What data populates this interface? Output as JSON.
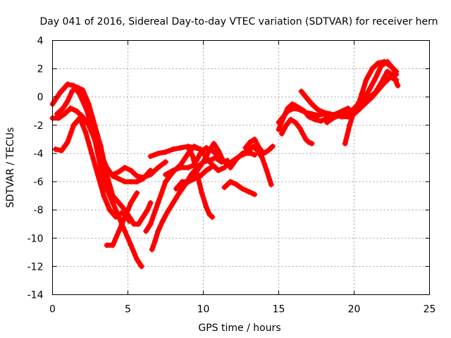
{
  "chart_data": {
    "type": "scatter",
    "title": "Day 041 of 2016, Sidereal Day-to-day VTEC variation (SDTVAR) for receiver hern",
    "xlabel": "GPS time / hours",
    "ylabel": "SDTVAR / TECUs",
    "xlim": [
      0,
      25
    ],
    "ylim": [
      -14,
      4
    ],
    "xticks": [
      0,
      5,
      10,
      15,
      20,
      25
    ],
    "yticks": [
      -14,
      -12,
      -10,
      -8,
      -6,
      -4,
      -2,
      0,
      2,
      4
    ],
    "grid": true,
    "marker": "+",
    "color": "#ff0000",
    "series": [
      {
        "name": "track-1",
        "x": [
          0.0,
          0.5,
          1.0,
          1.4,
          1.8,
          2.3,
          2.8,
          3.2,
          3.6,
          4.0,
          4.4,
          4.8,
          5.2,
          5.6,
          5.9
        ],
        "y": [
          -0.5,
          0.3,
          0.9,
          0.8,
          0.2,
          -1.0,
          -3.0,
          -5.0,
          -6.5,
          -7.5,
          -8.5,
          -9.5,
          -10.5,
          -11.5,
          -12.0
        ]
      },
      {
        "name": "track-2",
        "x": [
          0.0,
          0.4,
          0.8,
          1.2,
          1.6,
          2.0,
          2.4,
          2.8,
          3.2,
          3.6,
          4.0,
          4.4,
          4.8,
          5.2,
          5.6,
          6.0,
          6.5
        ],
        "y": [
          -1.5,
          -1.5,
          -1.2,
          -0.8,
          -1.0,
          -1.4,
          -2.0,
          -3.0,
          -4.0,
          -5.0,
          -5.6,
          -5.8,
          -6.0,
          -6.0,
          -6.0,
          -5.8,
          -5.2
        ]
      },
      {
        "name": "track-3",
        "x": [
          0.3,
          0.7,
          1.0,
          1.3,
          1.6,
          2.0,
          2.4,
          2.8,
          3.2,
          3.6,
          4.0,
          4.4,
          4.8,
          5.1,
          5.4,
          5.7,
          6.0,
          6.3,
          6.5
        ],
        "y": [
          -1.2,
          -0.8,
          -0.3,
          0.4,
          0.7,
          0.5,
          -0.5,
          -2.0,
          -3.5,
          -5.5,
          -7.0,
          -7.5,
          -8.0,
          -8.5,
          -9.0,
          -9.0,
          -8.5,
          -8.0,
          -7.5
        ]
      },
      {
        "name": "track-4",
        "x": [
          0.2,
          0.6,
          1.0,
          1.4,
          1.8,
          2.2,
          2.6,
          3.0,
          3.4,
          3.8,
          4.2,
          4.6,
          4.9,
          5.1
        ],
        "y": [
          -3.7,
          -3.8,
          -3.2,
          -2.0,
          -1.5,
          -2.5,
          -4.0,
          -5.5,
          -7.0,
          -8.0,
          -8.5,
          -8.2,
          -8.4,
          -8.8
        ]
      },
      {
        "name": "track-5",
        "x": [
          3.6,
          4.0,
          4.4,
          4.8,
          5.2,
          5.6
        ],
        "y": [
          -10.5,
          -10.5,
          -9.5,
          -8.5,
          -7.5,
          -6.8
        ]
      },
      {
        "name": "track-6",
        "x": [
          3.6,
          4.0,
          4.4,
          4.8,
          5.2,
          5.6,
          6.0,
          6.5,
          7.0,
          7.5
        ],
        "y": [
          -5.2,
          -5.5,
          -5.3,
          -5.0,
          -5.2,
          -5.6,
          -5.7,
          -5.5,
          -5.0,
          -4.6
        ]
      },
      {
        "name": "track-7",
        "x": [
          6.6,
          6.8,
          7.0,
          7.3,
          7.6,
          8.0,
          8.4,
          8.8,
          9.2,
          9.6,
          10.0,
          10.4,
          10.8,
          11.2,
          11.6
        ],
        "y": [
          -10.8,
          -10.2,
          -9.5,
          -8.8,
          -8.2,
          -7.5,
          -6.8,
          -6.2,
          -5.5,
          -5.0,
          -4.6,
          -4.5,
          -4.3,
          -4.6,
          -4.5
        ]
      },
      {
        "name": "track-8",
        "x": [
          8.8,
          9.2,
          9.6,
          10.0,
          10.4,
          10.7,
          11.0,
          11.3,
          11.6,
          12.0,
          12.4,
          12.8,
          13.2,
          13.4
        ],
        "y": [
          -6.2,
          -5.8,
          -5.2,
          -4.6,
          -3.8,
          -3.3,
          -3.8,
          -4.5,
          -4.8,
          -4.5,
          -4.2,
          -4.0,
          -4.0,
          -4.1
        ]
      },
      {
        "name": "track-9",
        "x": [
          6.2,
          6.5,
          7.0,
          7.5,
          8.0,
          8.5,
          9.0,
          9.4,
          9.8,
          10.2,
          10.6,
          11.0,
          11.4
        ],
        "y": [
          -9.5,
          -9.0,
          -7.5,
          -6.0,
          -5.3,
          -4.8,
          -4.0,
          -3.5,
          -3.7,
          -4.3,
          -4.8,
          -5.2,
          -5.0
        ]
      },
      {
        "name": "track-10",
        "x": [
          7.5,
          8.0,
          8.5,
          9.0,
          9.4,
          9.8,
          10.2,
          10.6,
          11.0
        ],
        "y": [
          -5.5,
          -5.2,
          -5.0,
          -5.0,
          -4.8,
          -4.0,
          -3.6,
          -3.8,
          -4.2
        ]
      },
      {
        "name": "track-11",
        "x": [
          6.5,
          7.0,
          7.5,
          8.0,
          8.5,
          9.0,
          9.5,
          10.0
        ],
        "y": [
          -4.2,
          -4.0,
          -3.9,
          -3.7,
          -3.6,
          -3.5,
          -3.6,
          -3.8
        ]
      },
      {
        "name": "track-12",
        "x": [
          9.0,
          9.3,
          9.6,
          9.9,
          10.2,
          10.4,
          10.6
        ],
        "y": [
          -3.6,
          -4.2,
          -5.5,
          -6.8,
          -7.8,
          -8.3,
          -8.5
        ]
      },
      {
        "name": "track-13",
        "x": [
          8.2,
          8.6,
          9.0,
          9.4,
          9.8,
          10.2,
          10.5
        ],
        "y": [
          -6.5,
          -6.0,
          -6.0,
          -5.8,
          -5.6,
          -5.2,
          -5.0
        ]
      },
      {
        "name": "track-14",
        "x": [
          11.4,
          11.8,
          12.2,
          12.6,
          13.0,
          13.4
        ],
        "y": [
          -6.4,
          -6.0,
          -6.2,
          -6.5,
          -6.7,
          -6.9
        ]
      },
      {
        "name": "track-15",
        "x": [
          11.8,
          12.2,
          12.6,
          13.0,
          13.3,
          13.6,
          13.9,
          14.2,
          14.5
        ],
        "y": [
          -5.0,
          -4.4,
          -4.0,
          -3.8,
          -3.5,
          -3.8,
          -4.3,
          -5.2,
          -6.2
        ]
      },
      {
        "name": "track-16",
        "x": [
          12.8,
          13.1,
          13.4,
          13.7,
          14.0,
          14.3,
          14.6
        ],
        "y": [
          -3.6,
          -3.2,
          -3.0,
          -3.6,
          -4.0,
          -3.8,
          -3.5
        ]
      },
      {
        "name": "track-17",
        "x": [
          15.0,
          15.3,
          15.6,
          15.9,
          16.1,
          16.4,
          16.7,
          17.0,
          17.4,
          17.8,
          18.2,
          18.6,
          19.0,
          19.4,
          19.8,
          20.2,
          20.5,
          20.8,
          21.2,
          21.6,
          22.0,
          22.4,
          22.8
        ],
        "y": [
          -2.3,
          -1.5,
          -0.8,
          -0.5,
          -0.6,
          -0.8,
          -1.0,
          -1.4,
          -1.6,
          -1.7,
          -1.5,
          -1.4,
          -1.2,
          -1.2,
          -1.0,
          -0.8,
          0.2,
          1.2,
          2.0,
          2.4,
          2.5,
          2.2,
          1.8
        ]
      },
      {
        "name": "track-18",
        "x": [
          15.0,
          15.3,
          15.6,
          16.0,
          16.4,
          16.8,
          17.2,
          17.6,
          18.0,
          18.4,
          18.8,
          19.2,
          19.6
        ],
        "y": [
          -1.8,
          -1.4,
          -1.0,
          -0.8,
          -0.9,
          -1.1,
          -1.2,
          -1.3,
          -1.2,
          -1.3,
          -1.2,
          -1.0,
          -0.8
        ]
      },
      {
        "name": "track-19",
        "x": [
          15.2,
          15.5,
          15.8,
          16.1,
          16.4,
          16.6,
          16.8,
          17.0,
          17.2
        ],
        "y": [
          -2.6,
          -2.0,
          -1.6,
          -1.8,
          -2.2,
          -2.6,
          -3.0,
          -3.2,
          -3.3
        ]
      },
      {
        "name": "track-20",
        "x": [
          16.5,
          16.8,
          17.2,
          17.6,
          18.0,
          18.4,
          18.8,
          19.2,
          19.6,
          20.0,
          20.4,
          20.8,
          21.2,
          21.6,
          22.0,
          22.4,
          22.8
        ],
        "y": [
          0.4,
          0.0,
          -0.5,
          -0.9,
          -1.1,
          -1.2,
          -1.3,
          -1.4,
          -1.4,
          -1.2,
          -0.8,
          -0.4,
          0.0,
          0.5,
          1.0,
          1.4,
          1.2
        ]
      },
      {
        "name": "track-21",
        "x": [
          18.2,
          18.6,
          19.0,
          19.4,
          19.8,
          20.2,
          20.6,
          21.0,
          21.4,
          21.8,
          22.2,
          22.6,
          22.8
        ],
        "y": [
          -1.8,
          -1.5,
          -1.3,
          -1.2,
          -1.0,
          -0.6,
          -0.2,
          0.5,
          1.3,
          2.2,
          2.5,
          2.0,
          1.6
        ]
      },
      {
        "name": "track-22",
        "x": [
          19.4,
          19.7,
          20.0,
          20.3,
          20.6,
          21.0,
          21.4,
          21.8,
          22.2,
          22.6,
          22.9
        ],
        "y": [
          -3.3,
          -2.0,
          -1.0,
          -0.4,
          -0.2,
          0.0,
          0.3,
          1.0,
          1.8,
          1.5,
          0.8
        ]
      }
    ]
  }
}
